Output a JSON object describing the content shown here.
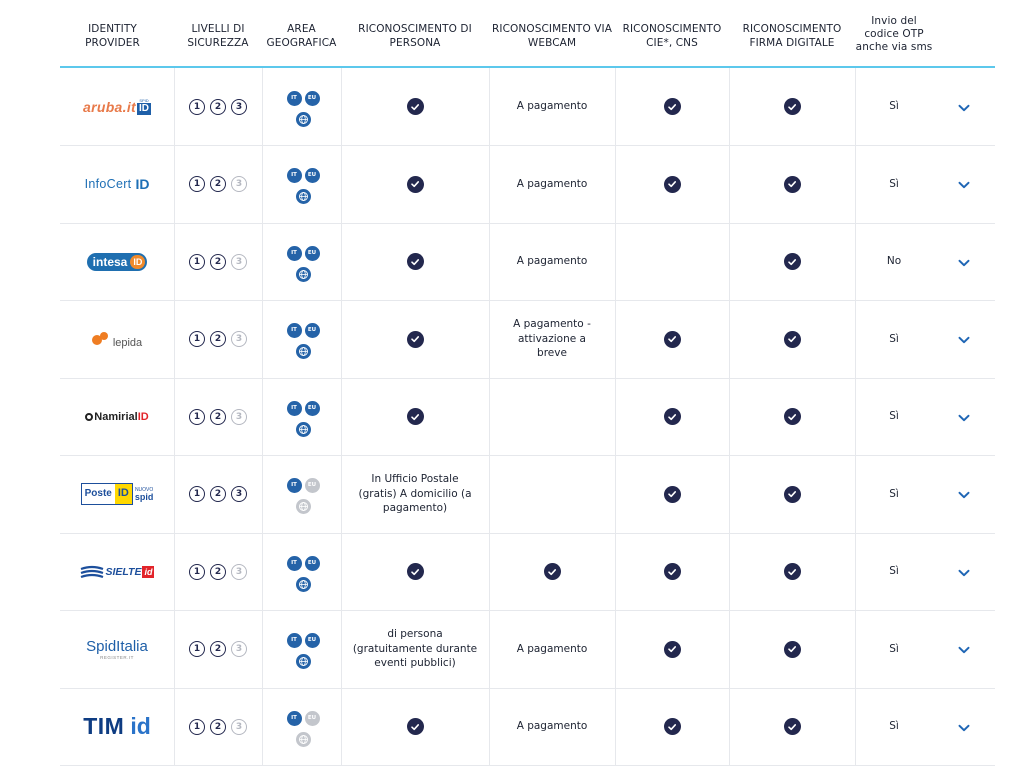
{
  "headers": {
    "provider": "IDENTITY PROVIDER",
    "levels": "LIVELLI DI SICUREZZA",
    "area": "AREA GEOGRAFICA",
    "in_person": "RICONOSCIMENTO DI PERSONA",
    "webcam": "RICONOSCIMENTO VIA WEBCAM",
    "cie": "RICONOSCIMENTO CIE*, CNS",
    "signature": "RICONOSCIMENTO FIRMA DIGITALE",
    "otp": "Invio del codice OTP anche via sms"
  },
  "level_labels": [
    "1",
    "2",
    "3"
  ],
  "geo_labels": {
    "it": "IT",
    "eu": "EU"
  },
  "colors": {
    "accent": "#5cc8ec",
    "check": "#23284e",
    "chevron": "#1f66b5",
    "geo": "#2563a8"
  },
  "providers": [
    {
      "key": "aruba",
      "logo": {
        "name": "aruba.it",
        "badge": "ID",
        "tag": "SPID"
      },
      "levels": [
        true,
        true,
        true
      ],
      "geo": {
        "it": true,
        "eu": true,
        "world": true
      },
      "in_person": {
        "check": true,
        "text": ""
      },
      "webcam": {
        "check": false,
        "text": "A pagamento"
      },
      "cie": true,
      "signature": true,
      "otp": "Sì"
    },
    {
      "key": "infocert",
      "logo": {
        "name": "InfoCert",
        "badge": "ID"
      },
      "levels": [
        true,
        true,
        false
      ],
      "geo": {
        "it": true,
        "eu": true,
        "world": true
      },
      "in_person": {
        "check": true,
        "text": ""
      },
      "webcam": {
        "check": false,
        "text": "A pagamento"
      },
      "cie": true,
      "signature": true,
      "otp": "Sì"
    },
    {
      "key": "intesa",
      "logo": {
        "name": "intesa",
        "badge": "ID"
      },
      "levels": [
        true,
        true,
        false
      ],
      "geo": {
        "it": true,
        "eu": true,
        "world": true
      },
      "in_person": {
        "check": true,
        "text": ""
      },
      "webcam": {
        "check": false,
        "text": "A pagamento"
      },
      "cie": false,
      "signature": true,
      "otp": "No"
    },
    {
      "key": "lepida",
      "logo": {
        "name": "lepida"
      },
      "levels": [
        true,
        true,
        false
      ],
      "geo": {
        "it": true,
        "eu": true,
        "world": true
      },
      "in_person": {
        "check": true,
        "text": ""
      },
      "webcam": {
        "check": false,
        "text": "A pagamento - attivazione a breve"
      },
      "cie": true,
      "signature": true,
      "otp": "Sì"
    },
    {
      "key": "namirial",
      "logo": {
        "name": "Namirial",
        "badge": "ID"
      },
      "levels": [
        true,
        true,
        false
      ],
      "geo": {
        "it": true,
        "eu": true,
        "world": true
      },
      "in_person": {
        "check": true,
        "text": ""
      },
      "webcam": {
        "check": false,
        "text": ""
      },
      "cie": true,
      "signature": true,
      "otp": "Sì"
    },
    {
      "key": "poste",
      "logo": {
        "name": "Poste",
        "badge": "ID",
        "tag": "NUOVO",
        "sub": "spid"
      },
      "levels": [
        true,
        true,
        true
      ],
      "geo": {
        "it": true,
        "eu": false,
        "world": false
      },
      "in_person": {
        "check": false,
        "text": "In Ufficio Postale (gratis) A domicilio (a pagamento)"
      },
      "webcam": {
        "check": false,
        "text": ""
      },
      "cie": true,
      "signature": true,
      "otp": "Sì"
    },
    {
      "key": "sielte",
      "logo": {
        "name": "SIELTE",
        "badge": "id"
      },
      "levels": [
        true,
        true,
        false
      ],
      "geo": {
        "it": true,
        "eu": true,
        "world": true
      },
      "in_person": {
        "check": true,
        "text": ""
      },
      "webcam": {
        "check": true,
        "text": ""
      },
      "cie": true,
      "signature": true,
      "otp": "Sì"
    },
    {
      "key": "spiditalia",
      "logo": {
        "name": "Spid",
        "badge": "Italia",
        "sub": "REGISTER.IT"
      },
      "levels": [
        true,
        true,
        false
      ],
      "geo": {
        "it": true,
        "eu": true,
        "world": true
      },
      "in_person": {
        "check": false,
        "text": "di persona (gratuitamente durante eventi pubblici)"
      },
      "webcam": {
        "check": false,
        "text": "A pagamento"
      },
      "cie": true,
      "signature": true,
      "otp": "Sì"
    },
    {
      "key": "tim",
      "logo": {
        "name": "TIM",
        "badge": "id"
      },
      "levels": [
        true,
        true,
        false
      ],
      "geo": {
        "it": true,
        "eu": false,
        "world": false
      },
      "in_person": {
        "check": true,
        "text": ""
      },
      "webcam": {
        "check": false,
        "text": "A pagamento"
      },
      "cie": true,
      "signature": true,
      "otp": "Sì"
    }
  ]
}
